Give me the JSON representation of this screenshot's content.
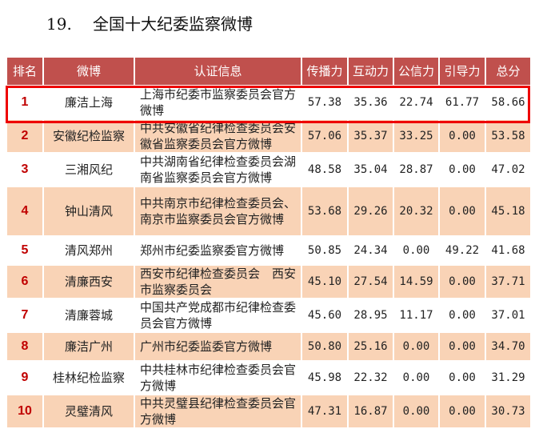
{
  "title": {
    "number": "19.",
    "text": "全国十大纪委监察微博"
  },
  "headers": [
    "排名",
    "微博",
    "认证信息",
    "传播力",
    "互动力",
    "公信力",
    "引导力",
    "总分"
  ],
  "rows": [
    {
      "rank": "1",
      "name": "廉洁上海",
      "info": "上海市纪委市监察委员会官方微博",
      "c1": "57.38",
      "c2": "35.36",
      "c3": "22.74",
      "c4": "61.77",
      "total": "58.66"
    },
    {
      "rank": "2",
      "name": "安徽纪检监察",
      "info": "中共安徽省纪律检查委员会安徽省监察委员会官方微博",
      "c1": "57.06",
      "c2": "35.37",
      "c3": "33.25",
      "c4": "0.00",
      "total": "53.58"
    },
    {
      "rank": "3",
      "name": "三湘风纪",
      "info": "中共湖南省纪律检查委员会湖南省监察委员会官方微博",
      "c1": "48.58",
      "c2": "35.04",
      "c3": "28.87",
      "c4": "0.00",
      "total": "47.02"
    },
    {
      "rank": "4",
      "name": "钟山清风",
      "info": "中共南京市纪律检查委员会、南京市监察委员会官方微博",
      "c1": "53.68",
      "c2": "29.26",
      "c3": "20.32",
      "c4": "0.00",
      "total": "45.18"
    },
    {
      "rank": "5",
      "name": "清风郑州",
      "info": "郑州市纪委监察委官方微博",
      "c1": "50.85",
      "c2": "24.34",
      "c3": "0.00",
      "c4": "49.22",
      "total": "41.68"
    },
    {
      "rank": "6",
      "name": "清廉西安",
      "info": "西安市纪律检查委员会　西安市监察委员会",
      "c1": "45.10",
      "c2": "27.54",
      "c3": "14.59",
      "c4": "0.00",
      "total": "37.71"
    },
    {
      "rank": "7",
      "name": "清廉蓉城",
      "info": "中国共产党成都市纪律检查委员会官方微博",
      "c1": "45.60",
      "c2": "28.95",
      "c3": "11.17",
      "c4": "0.00",
      "total": "37.01"
    },
    {
      "rank": "8",
      "name": "廉洁广州",
      "info": "广州市纪委监委官方微博",
      "c1": "50.80",
      "c2": "25.16",
      "c3": "0.00",
      "c4": "0.00",
      "total": "34.70"
    },
    {
      "rank": "9",
      "name": "桂林纪检监察",
      "info": "中共桂林市纪律检查委员会官方微博",
      "c1": "45.98",
      "c2": "22.32",
      "c3": "0.00",
      "c4": "0.00",
      "total": "31.29"
    },
    {
      "rank": "10",
      "name": "灵璧清风",
      "info": "中共灵璧县纪律检查委员会官方微博",
      "c1": "47.31",
      "c2": "16.87",
      "c3": "0.00",
      "c4": "0.00",
      "total": "30.73"
    }
  ],
  "colors": {
    "header": "#c0504d",
    "alt_row": "#f9d3b6",
    "rank_text": "#c00000",
    "highlight_border": "#ee0000"
  }
}
